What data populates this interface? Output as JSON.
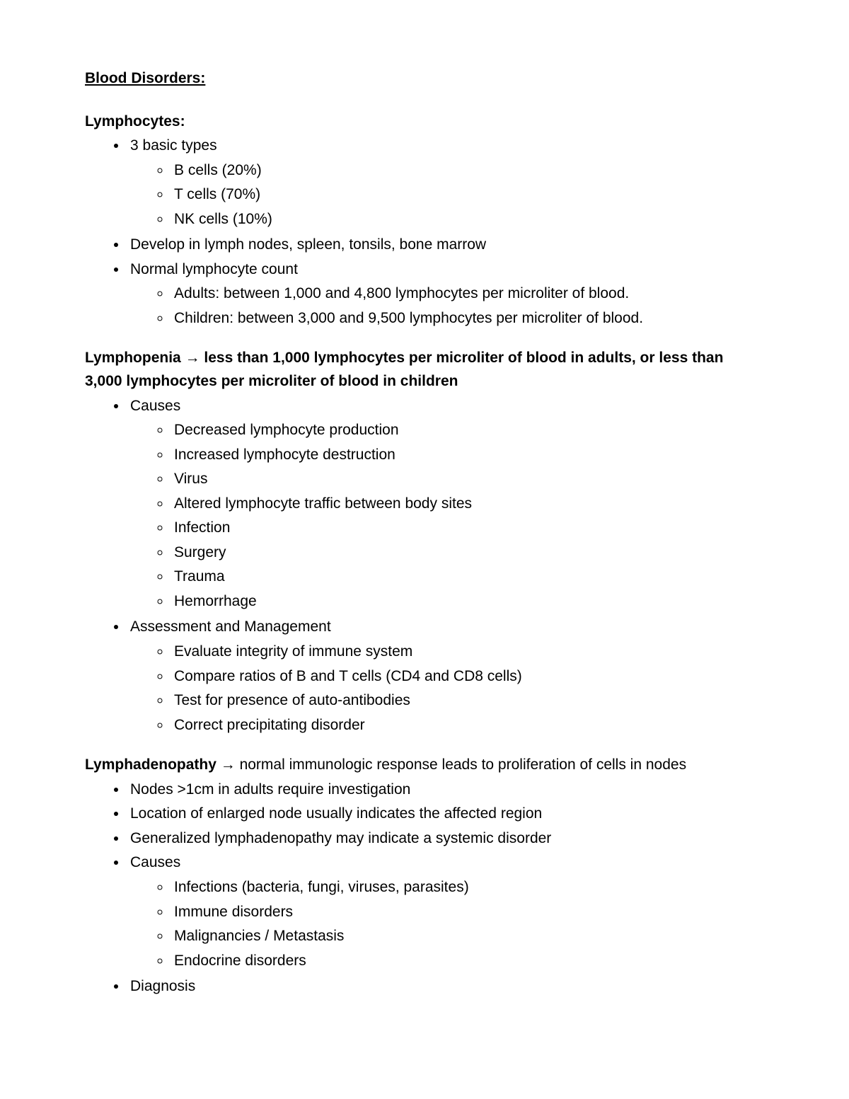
{
  "title": "Blood Disorders:",
  "sections": [
    {
      "heading": "Lymphocytes:",
      "heading_inline": null,
      "items": [
        {
          "text": "3 basic types",
          "children": [
            "B cells (20%)",
            "T cells (70%)",
            "NK cells (10%)"
          ]
        },
        {
          "text": "Develop in lymph nodes, spleen, tonsils, bone marrow",
          "children": []
        },
        {
          "text": "Normal lymphocyte count",
          "children": [
            "Adults: between 1,000 and 4,800 lymphocytes per microliter of blood.",
            "Children: between 3,000 and 9,500 lymphocytes per microliter of blood."
          ]
        }
      ]
    },
    {
      "heading": "Lymphopenia",
      "heading_inline": " → less than 1,000 lymphocytes per microliter of blood in adults, or less than 3,000 lymphocytes per microliter of blood in children",
      "heading_inline_bold": true,
      "items": [
        {
          "text": "Causes",
          "children": [
            "Decreased lymphocyte production",
            "Increased lymphocyte destruction",
            "Virus",
            "Altered lymphocyte traffic between body sites",
            "Infection",
            "Surgery",
            "Trauma",
            "Hemorrhage"
          ]
        },
        {
          "text": "Assessment and Management",
          "children": [
            "Evaluate integrity of immune system",
            "Compare ratios of B and T cells (CD4 and CD8 cells)",
            "Test for presence of auto-antibodies",
            "Correct precipitating disorder"
          ]
        }
      ]
    },
    {
      "heading": "Lymphadenopathy",
      "heading_inline": " → normal immunologic response leads to proliferation of cells in nodes",
      "heading_inline_bold": false,
      "items": [
        {
          "text": "Nodes >1cm in adults require investigation",
          "children": []
        },
        {
          "text": "Location of enlarged node usually indicates the affected region",
          "children": []
        },
        {
          "text": "Generalized lymphadenopathy may indicate a systemic disorder",
          "children": []
        },
        {
          "text": "Causes",
          "children": [
            "Infections (bacteria, fungi, viruses, parasites)",
            "Immune disorders",
            "Malignancies / Metastasis",
            "Endocrine disorders"
          ]
        },
        {
          "text": "Diagnosis",
          "children": []
        }
      ]
    }
  ]
}
